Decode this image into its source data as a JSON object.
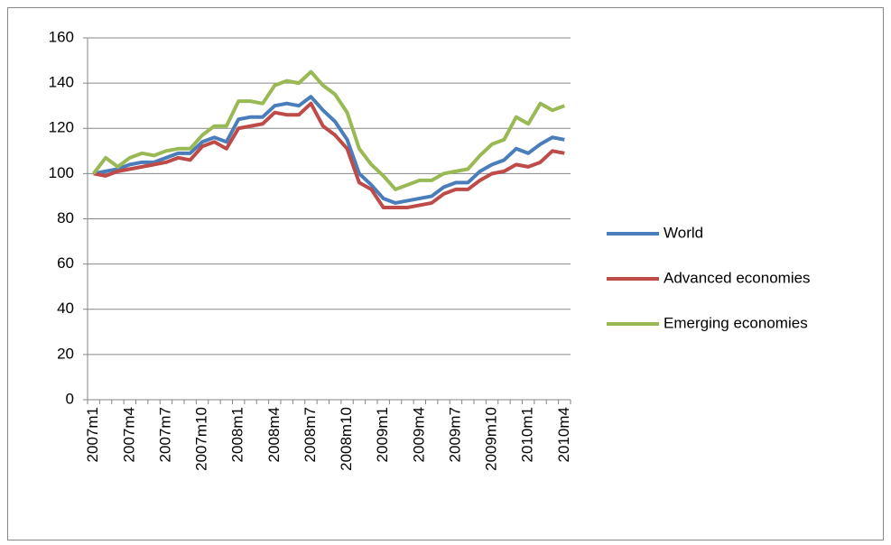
{
  "chart_data": {
    "type": "line",
    "categories": [
      "2007m1",
      null,
      null,
      "2007m4",
      null,
      null,
      "2007m7",
      null,
      null,
      "2007m10",
      null,
      null,
      "2008m1",
      null,
      null,
      "2008m4",
      null,
      null,
      "2008m7",
      null,
      null,
      "2008m10",
      null,
      null,
      "2009m1",
      null,
      null,
      "2009m4",
      null,
      null,
      "2009m7",
      null,
      null,
      "2009m10",
      null,
      null,
      "2010m1",
      null,
      null,
      "2010m4"
    ],
    "series": [
      {
        "name": "World",
        "color": "#4a7ebb",
        "values": [
          100,
          101,
          102,
          104,
          105,
          105,
          107,
          109,
          109,
          114,
          116,
          114,
          124,
          125,
          125,
          130,
          131,
          130,
          134,
          128,
          123,
          115,
          100,
          95,
          89,
          87,
          88,
          89,
          90,
          94,
          96,
          96,
          101,
          104,
          106,
          111,
          109,
          113,
          116,
          115
        ]
      },
      {
        "name": "Advanced economies",
        "color": "#be4b48",
        "values": [
          100,
          99,
          101,
          102,
          103,
          104,
          105,
          107,
          106,
          112,
          114,
          111,
          120,
          121,
          122,
          127,
          126,
          126,
          131,
          121,
          117,
          111,
          96,
          93,
          85,
          85,
          85,
          86,
          87,
          91,
          93,
          93,
          97,
          100,
          101,
          104,
          103,
          105,
          110,
          109
        ]
      },
      {
        "name": "Emerging economies",
        "color": "#98b954",
        "values": [
          100,
          107,
          103,
          107,
          109,
          108,
          110,
          111,
          111,
          117,
          121,
          121,
          132,
          132,
          131,
          139,
          141,
          140,
          145,
          139,
          135,
          127,
          111,
          104,
          99,
          93,
          95,
          97,
          97,
          100,
          101,
          102,
          108,
          113,
          115,
          125,
          122,
          131,
          128,
          130
        ]
      }
    ],
    "ylim": [
      0,
      160
    ],
    "yticks": [
      0,
      20,
      40,
      60,
      80,
      100,
      120,
      140,
      160
    ],
    "grid": true,
    "legend": "right"
  }
}
